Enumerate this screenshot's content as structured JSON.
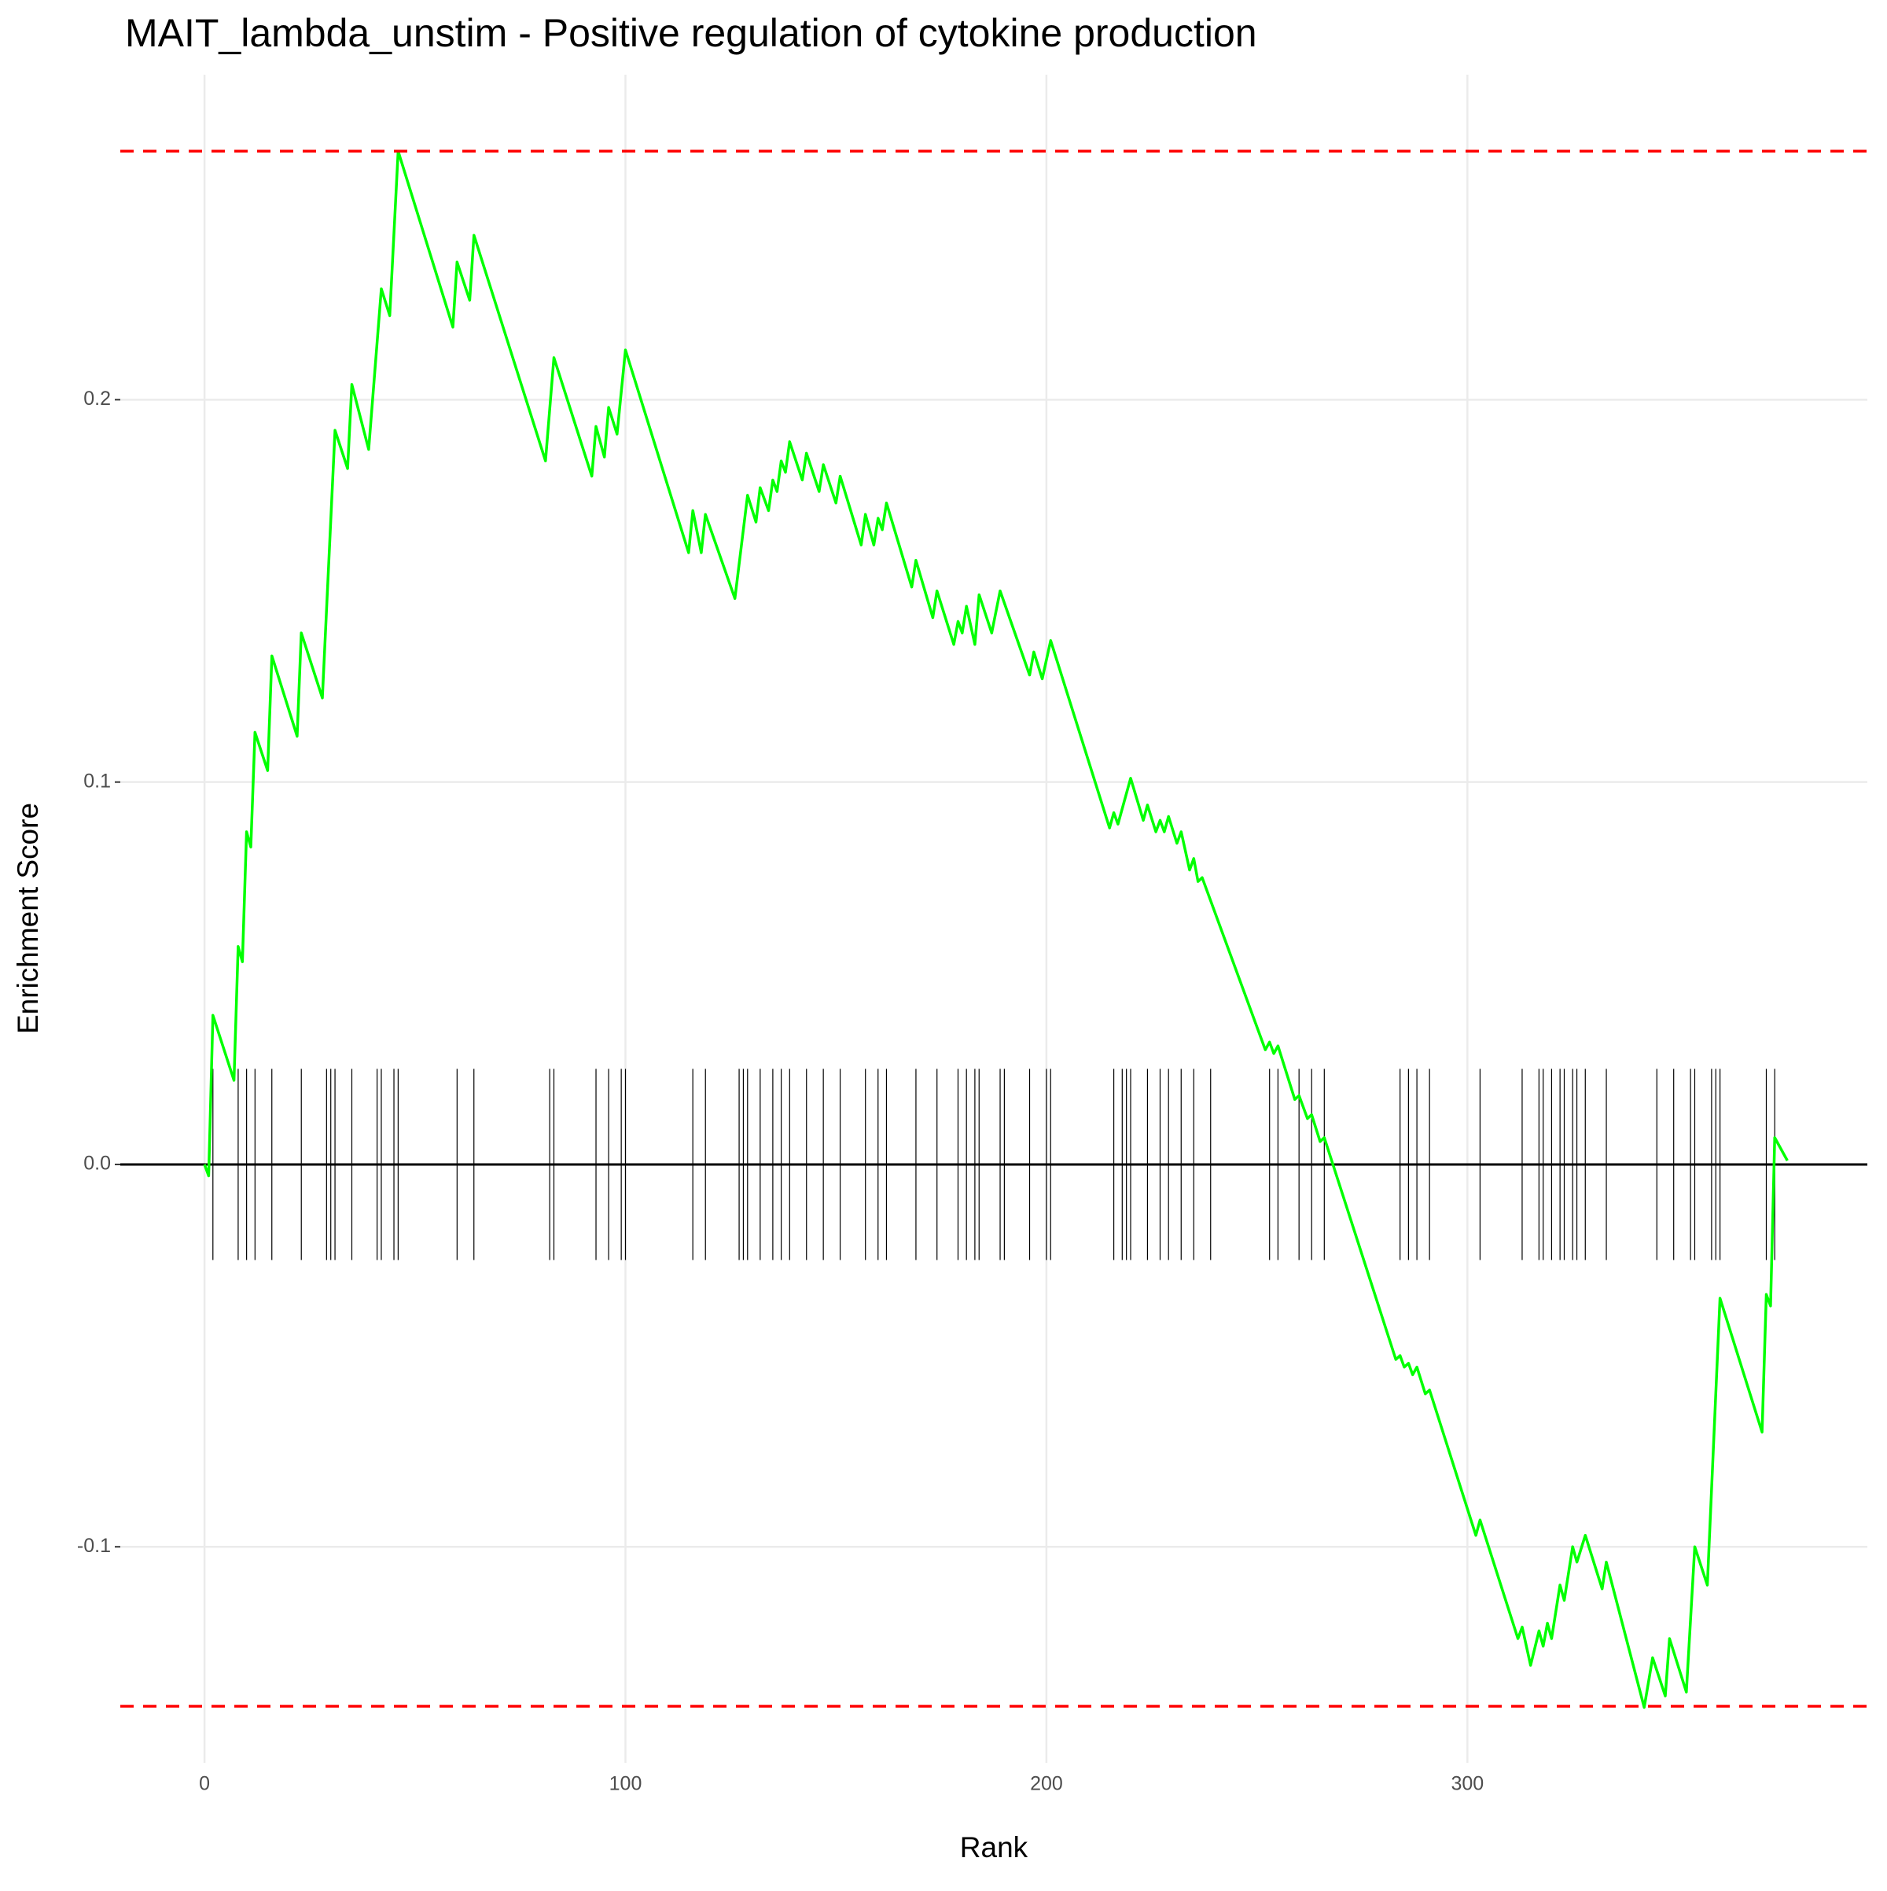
{
  "chart_data": {
    "type": "line",
    "title": "MAIT_lambda_unstim - Positive regulation of cytokine production",
    "x_label": "Rank",
    "y_label": "Enrichment Score",
    "xlim": [
      -20,
      395
    ],
    "ylim": [
      -0.1565,
      0.285
    ],
    "xticks": [
      0,
      100,
      200,
      300
    ],
    "yticks": [
      {
        "value": -0.1,
        "label": "-0.1"
      },
      {
        "value": 0,
        "label": "0.0"
      },
      {
        "value": 0.1,
        "label": "0.1"
      },
      {
        "value": 0.2,
        "label": "0.2"
      }
    ],
    "grid": true,
    "series": [
      {
        "color": "#00ff00",
        "x": [
          0,
          1,
          2,
          7,
          8,
          9,
          10,
          11,
          12,
          15,
          16,
          22,
          23,
          28,
          31,
          34,
          35,
          39,
          42,
          44,
          46,
          59,
          60,
          63,
          64,
          81,
          83,
          92,
          93,
          95,
          96,
          98,
          100,
          115,
          116,
          118,
          119,
          126,
          129,
          131,
          132,
          134,
          135,
          136,
          137,
          138,
          139,
          142,
          143,
          146,
          147,
          150,
          151,
          156,
          157,
          159,
          160,
          161,
          162,
          168,
          169,
          173,
          174,
          178,
          179,
          180,
          181,
          183,
          184,
          187,
          189,
          196,
          197,
          199,
          201,
          215,
          216,
          217,
          220,
          223,
          224,
          226,
          227,
          228,
          229,
          231,
          232,
          234,
          235,
          236,
          237,
          252,
          253,
          254,
          255,
          259,
          260,
          262,
          263,
          265,
          266,
          283,
          284,
          285,
          286,
          287,
          288,
          290,
          291,
          302,
          303,
          312,
          313,
          315,
          317,
          318,
          319,
          320,
          322,
          323,
          325,
          326,
          328,
          332,
          333,
          342,
          344,
          347,
          348,
          352,
          354,
          357,
          360,
          370,
          371,
          372,
          373,
          376
        ],
        "values": [
          0,
          -0.003,
          0.039,
          0.022,
          0.057,
          0.053,
          0.087,
          0.083,
          0.113,
          0.103,
          0.133,
          0.112,
          0.139,
          0.122,
          0.192,
          0.182,
          0.204,
          0.187,
          0.229,
          0.222,
          0.265,
          0.219,
          0.236,
          0.226,
          0.243,
          0.184,
          0.211,
          0.18,
          0.193,
          0.185,
          0.198,
          0.191,
          0.213,
          0.16,
          0.171,
          0.16,
          0.17,
          0.148,
          0.175,
          0.168,
          0.177,
          0.171,
          0.179,
          0.176,
          0.184,
          0.181,
          0.189,
          0.179,
          0.186,
          0.176,
          0.183,
          0.173,
          0.18,
          0.162,
          0.17,
          0.162,
          0.169,
          0.166,
          0.173,
          0.151,
          0.158,
          0.143,
          0.15,
          0.136,
          0.142,
          0.139,
          0.146,
          0.136,
          0.149,
          0.139,
          0.15,
          0.128,
          0.134,
          0.127,
          0.137,
          0.088,
          0.092,
          0.089,
          0.101,
          0.09,
          0.094,
          0.087,
          0.09,
          0.087,
          0.091,
          0.084,
          0.087,
          0.077,
          0.08,
          0.074,
          0.075,
          0.03,
          0.032,
          0.029,
          0.031,
          0.017,
          0.018,
          0.012,
          0.013,
          0.006,
          0.007,
          -0.051,
          -0.05,
          -0.053,
          -0.052,
          -0.055,
          -0.053,
          -0.06,
          -0.059,
          -0.097,
          -0.093,
          -0.124,
          -0.121,
          -0.131,
          -0.122,
          -0.126,
          -0.12,
          -0.124,
          -0.11,
          -0.114,
          -0.1,
          -0.104,
          -0.097,
          -0.111,
          -0.104,
          -0.142,
          -0.129,
          -0.139,
          -0.124,
          -0.138,
          -0.1,
          -0.11,
          -0.035,
          -0.07,
          -0.034,
          -0.037,
          0.007,
          0.001
        ]
      }
    ],
    "hits": [
      2,
      8,
      10,
      12,
      16,
      23,
      29,
      30,
      31,
      35,
      41,
      42,
      45,
      46,
      60,
      64,
      82,
      83,
      93,
      96,
      99,
      100,
      116,
      119,
      127,
      128,
      129,
      132,
      135,
      137,
      139,
      143,
      147,
      151,
      157,
      160,
      162,
      169,
      174,
      179,
      181,
      183,
      184,
      189,
      190,
      196,
      200,
      201,
      216,
      218,
      219,
      220,
      224,
      227,
      229,
      232,
      235,
      239,
      253,
      255,
      260,
      263,
      266,
      284,
      286,
      288,
      291,
      303,
      313,
      317,
      318,
      320,
      322,
      323,
      325,
      326,
      328,
      333,
      345,
      349,
      353,
      354,
      358,
      359,
      360,
      371,
      373
    ],
    "max_es": 0.265,
    "min_es": -0.1417,
    "threshold_color": "#ff0000"
  }
}
